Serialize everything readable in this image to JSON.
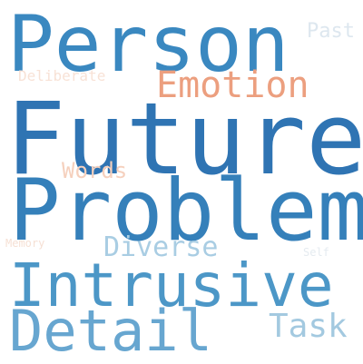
{
  "words": [
    {
      "text": "Person",
      "color": "#3a88c0"
    },
    {
      "text": "Future",
      "color": "#2f74b3"
    },
    {
      "text": "Problem",
      "color": "#3580ba"
    },
    {
      "text": "Intrusive",
      "color": "#4c97c7"
    },
    {
      "text": "Detail",
      "color": "#67a6d0"
    },
    {
      "text": "Emotion",
      "color": "#ec9f7f"
    },
    {
      "text": "Diverse",
      "color": "#a9cde3"
    },
    {
      "text": "Task",
      "color": "#a3c9e0"
    },
    {
      "text": "Words",
      "color": "#f5d0bd"
    },
    {
      "text": "Past",
      "color": "#dde7ef"
    },
    {
      "text": "Deliberate",
      "color": "#f8e2d6"
    },
    {
      "text": "Memory",
      "color": "#f6e0d4"
    },
    {
      "text": "Self",
      "color": "#e5ebf0"
    }
  ]
}
